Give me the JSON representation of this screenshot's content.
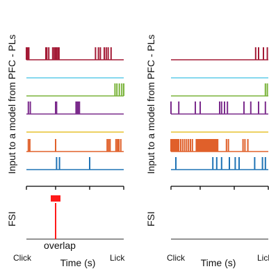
{
  "chart_data": [
    {
      "type": "raster",
      "ylabel_top": "Input to a model from PFC - PLs",
      "ylabel_bottom": "FSI",
      "xlabel": "Time (s)",
      "x_tick_labels": [
        "Click",
        "Lick"
      ],
      "xlim": [
        0,
        1
      ],
      "annotations": {
        "overlap_label": "overlap",
        "overlap_bar_color": "#ff1a1a"
      },
      "rows": [
        {
          "color": "#a31a35",
          "spikes": [
            0.0,
            0.012,
            0.025,
            0.2,
            0.21,
            0.23,
            0.27,
            0.285,
            0.3,
            0.31,
            0.325,
            0.335,
            0.71,
            0.74,
            0.76,
            0.8,
            0.82,
            0.84,
            0.87
          ]
        },
        {
          "color": "#5ecbe8",
          "spikes": []
        },
        {
          "color": "#7ab33a",
          "spikes": [
            0.91,
            0.93,
            0.955,
            0.98,
            1.0
          ]
        },
        {
          "color": "#7b2b8c",
          "spikes": [
            0.02,
            0.04,
            0.3,
            0.31,
            0.51,
            0.515,
            0.52,
            0.525,
            0.53,
            0.535,
            0.54,
            0.545
          ]
        },
        {
          "color": "#e7c22e",
          "spikes": []
        },
        {
          "color": "#e0602a",
          "spikes": [
            0.02,
            0.035,
            0.3,
            0.83,
            0.845,
            0.86,
            0.92,
            0.935,
            0.95,
            0.97
          ]
        },
        {
          "color": "#1f73b5",
          "spikes": [
            0.31,
            0.34,
            0.65
          ]
        }
      ],
      "fsi": {
        "color": "#ff1a1a",
        "spikes": [
          0.3
        ],
        "overlap_span": [
          0.25,
          0.35
        ]
      }
    },
    {
      "type": "raster",
      "ylabel_top": "Input to a model from PFC - PLs",
      "ylabel_bottom": "FSI",
      "xlabel": "Time (s)",
      "x_tick_labels": [
        "Click",
        "Lick"
      ],
      "xlim": [
        0,
        1
      ],
      "rows": [
        {
          "color": "#a31a35",
          "spikes": [
            0.87,
            0.9,
            0.95,
            0.99
          ]
        },
        {
          "color": "#5ecbe8",
          "spikes": []
        },
        {
          "color": "#7ab33a",
          "spikes": [
            0.97,
            0.99
          ]
        },
        {
          "color": "#7b2b8c",
          "spikes": [
            0.0,
            0.08,
            0.25,
            0.3,
            0.5,
            0.52,
            0.55,
            0.58,
            0.75,
            0.82,
            0.9,
            0.97
          ]
        },
        {
          "color": "#e7c22e",
          "spikes": []
        },
        {
          "color": "#e0602a",
          "spikes": [
            0.0,
            0.01,
            0.02,
            0.03,
            0.04,
            0.05,
            0.06,
            0.07,
            0.08,
            0.1,
            0.12,
            0.14,
            0.16,
            0.18,
            0.2,
            0.22,
            0.26,
            0.27,
            0.28,
            0.29,
            0.3,
            0.31,
            0.32,
            0.33,
            0.34,
            0.35,
            0.36,
            0.37,
            0.38,
            0.39,
            0.4,
            0.41,
            0.42,
            0.43,
            0.44,
            0.45,
            0.46,
            0.47,
            0.48,
            0.57,
            0.59,
            0.74,
            0.76,
            0.79
          ]
        },
        {
          "color": "#1f73b5",
          "spikes": [
            0.05,
            0.43,
            0.47,
            0.52,
            0.6,
            0.66,
            0.7,
            0.86,
            0.94,
            0.97
          ]
        }
      ],
      "fsi": {
        "color": "#ff1a1a",
        "spikes": []
      }
    }
  ]
}
